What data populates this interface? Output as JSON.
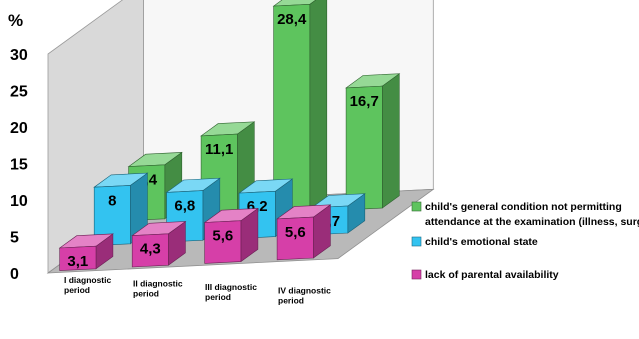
{
  "chart_data": {
    "type": "bar",
    "title": "",
    "xlabel": "",
    "ylabel": "%",
    "ylim": [
      0,
      30
    ],
    "yticks": [
      "0",
      "5",
      "10",
      "15",
      "20",
      "25",
      "30"
    ],
    "grid": false,
    "legend_position": "right",
    "categories": [
      [
        "I diagnostic",
        "period"
      ],
      [
        "II diagnostic",
        "period"
      ],
      [
        "III diagnostic",
        "period"
      ],
      [
        "IV diagnostic",
        "period"
      ]
    ],
    "series": [
      {
        "name": [
          "child's general condition not permitting",
          "attendance at the examination (illness, surgery"
        ],
        "color": "#5ec45e",
        "values": [
          7.4,
          11.1,
          28.4,
          16.7
        ],
        "labels": [
          "7,4",
          "11,1",
          "28,4",
          "16,7"
        ]
      },
      {
        "name": [
          "child's emotional state"
        ],
        "color": "#33c3f0",
        "values": [
          8,
          6.8,
          6.2,
          3.7
        ],
        "labels": [
          "8",
          "6,8",
          "6,2",
          "3,7"
        ]
      },
      {
        "name": [
          "lack of parental availability"
        ],
        "color": "#d63fa8",
        "values": [
          3.1,
          4.3,
          5.6,
          5.6
        ],
        "labels": [
          "3,1",
          "4,3",
          "5,6",
          "5,6"
        ]
      }
    ]
  }
}
